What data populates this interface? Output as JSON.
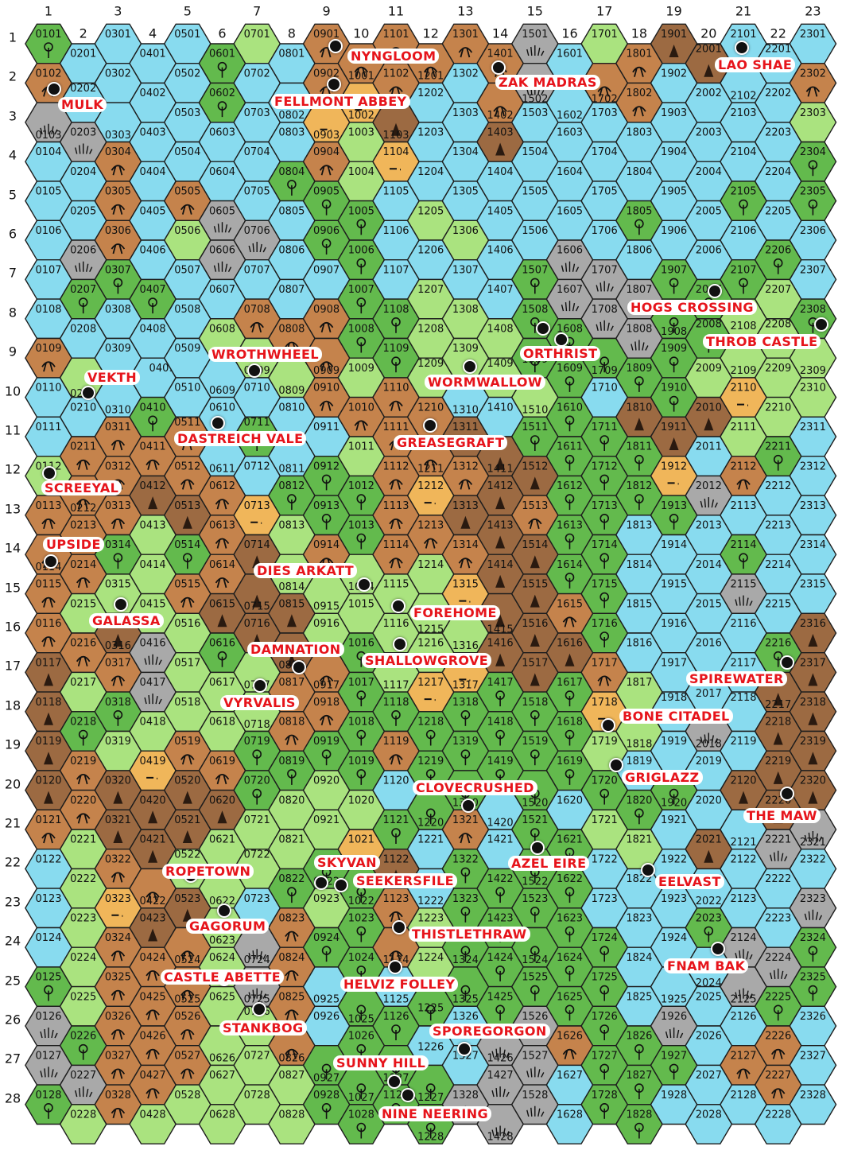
{
  "grid": {
    "columns": [
      1,
      2,
      3,
      4,
      5,
      6,
      7,
      8,
      9,
      10,
      11,
      12,
      13,
      14,
      15,
      16,
      17,
      18,
      19,
      20,
      21,
      22,
      23
    ],
    "rows": [
      1,
      2,
      3,
      4,
      5,
      6,
      7,
      8,
      9,
      10,
      11,
      12,
      13,
      14,
      15,
      16,
      17,
      18,
      19,
      20,
      21,
      22,
      23,
      24,
      25,
      26,
      27,
      28
    ]
  },
  "terrain_colors": {
    "w": "#88dbef",
    "g": "#aae37f",
    "f": "#63ba4d",
    "h": "#c5834c",
    "m": "#9c6a42",
    "d": "#f0b65a",
    "s": "#a9a9a9"
  },
  "terrain_types": {
    "w": "water",
    "g": "grassland",
    "f": "forest",
    "h": "hills",
    "m": "mountains",
    "d": "desert",
    "s": "swamp"
  },
  "terrain_by_column": [
    "fhswwwwwhwwghhhhmmmmhwwwfssf",
    "wwswwsfwgwhhhhghgfhhgggggfsg",
    "wwwhhhfwwwhhhfgmhfgmmhdhhhhh",
    "wwwwwwfwwfhmgggssgdmmhmhhhhg",
    "wwwwhgwwwwhhmfhggghmmgmhhhhg",
    "ffwwsswgwwwhhhmfgghmgggggggg",
    "gwwwwswhgwfwdmmmggffggwssggg",
    "wwwfwwwhgwwfggmmhhfggfhhhhgg",
    "hhdhffwhhhwffhgghhfggfgfwwff",
    "hdggffffghgffggffffgdfffffff",
    "hhmdwwwffhhhhhgggfhwfmhhwfff",
    "hwwwgwggghhdhgggdfffwwggfwff",
    "hwwwwgwggwmhmhdgdfffhffffwws",
    "hhmwwwwggwmmmmmmfffwwffffsss",
    "sswwwwfffgfmhmmmmffffffffsss",
    "wwwwwssfffffffhmfffwfffffhww",
    "ghwwwwssfwffffffhdgfgwwfffff",
    "hhwwfwssfmffwwwwggwfgwwwwfff",
    "mwwwwwffffmdfwwwwwwfwwwwwsfw",
    "mwwwwwffgmwswwwwwswwmwfwwwww",
    "wwwwfwfggdghwfswwwwmwwwsswhw",
    "wwwwwfggggfwwwwfmmmmswwsfhhw",
    "whgffwwfggwwwwwmmmmmswsffwww"
  ],
  "locations": [
    {
      "name": "NYNGLOOM"
    },
    {
      "name": "LAO SHAE"
    },
    {
      "name": "MULK"
    },
    {
      "name": "FELLMONT ABBEY"
    },
    {
      "name": "ZAK MADRAS"
    },
    {
      "name": "HOGS CROSSING"
    },
    {
      "name": "THROB CASTLE"
    },
    {
      "name": "ORTHRIST"
    },
    {
      "name": "WROTHWHEEL"
    },
    {
      "name": "VEKTH"
    },
    {
      "name": "WORMWALLOW"
    },
    {
      "name": "DASTREICH VALE"
    },
    {
      "name": "GREASEGRAFT"
    },
    {
      "name": "SCREEYAL"
    },
    {
      "name": "UPSIDE"
    },
    {
      "name": "DIES ARKATT"
    },
    {
      "name": "FOREHOME"
    },
    {
      "name": "GALASSA"
    },
    {
      "name": "DAMNATION"
    },
    {
      "name": "SHALLOWGROVE"
    },
    {
      "name": "SPIREWATER"
    },
    {
      "name": "VYRVALIS"
    },
    {
      "name": "BONE CITADEL"
    },
    {
      "name": "GRIGLAZZ"
    },
    {
      "name": "CLOVECRUSHED"
    },
    {
      "name": "THE MAW"
    },
    {
      "name": "AZEL EIRE"
    },
    {
      "name": "ROPETOWN"
    },
    {
      "name": "SKYVAN"
    },
    {
      "name": "SEEKERSFILE"
    },
    {
      "name": "EELVAST"
    },
    {
      "name": "GAGORUM"
    },
    {
      "name": "THISTLETHRAW"
    },
    {
      "name": "FNAM BAK"
    },
    {
      "name": "HELVIZ FOLLEY"
    },
    {
      "name": "CASTLE ABETTE"
    },
    {
      "name": "STANKBOG"
    },
    {
      "name": "SPOREGORGON"
    },
    {
      "name": "SUNNY HILL"
    },
    {
      "name": "NINE NEERING"
    }
  ]
}
